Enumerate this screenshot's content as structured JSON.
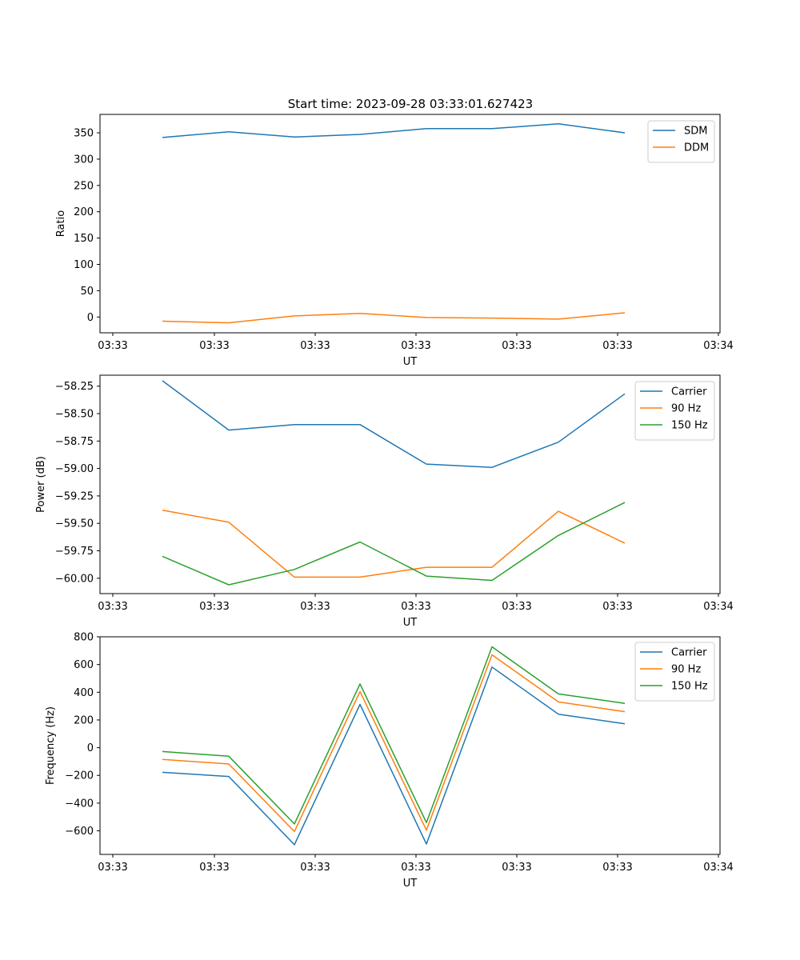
{
  "figure_title": "Start time: 2023-09-28 03:33:01.627423",
  "colors": {
    "c0": "#1f77b4",
    "c1": "#ff7f0e",
    "c2": "#2ca02c"
  },
  "chart_data": [
    {
      "type": "line",
      "title": "Start time: 2023-09-28 03:33:01.627423",
      "xlabel": "UT",
      "ylabel": "Ratio",
      "x_tick_labels": [
        "03:33",
        "03:33",
        "03:33",
        "03:33",
        "03:33",
        "03:33",
        "03:34"
      ],
      "y_ticks": [
        0,
        50,
        100,
        150,
        200,
        250,
        300,
        350
      ],
      "ylim": [
        -30,
        385
      ],
      "legend_position": "top-right",
      "series": [
        {
          "name": "SDM",
          "color": "#1f77b4",
          "values": [
            341,
            352,
            342,
            347,
            358,
            358,
            367,
            350
          ]
        },
        {
          "name": "DDM",
          "color": "#ff7f0e",
          "values": [
            -8,
            -11,
            2,
            7,
            -1,
            -2,
            -4,
            8
          ]
        }
      ]
    },
    {
      "type": "line",
      "xlabel": "UT",
      "ylabel": "Power (dB)",
      "x_tick_labels": [
        "03:33",
        "03:33",
        "03:33",
        "03:33",
        "03:33",
        "03:33",
        "03:34"
      ],
      "y_ticks": [
        -60.0,
        -59.75,
        -59.5,
        -59.25,
        -59.0,
        -58.75,
        -58.5,
        -58.25
      ],
      "y_tick_labels": [
        "−60.00",
        "−59.75",
        "−59.50",
        "−59.25",
        "−59.00",
        "−58.75",
        "−58.50",
        "−58.25"
      ],
      "ylim": [
        -60.14,
        -58.15
      ],
      "legend_position": "top-right",
      "series": [
        {
          "name": "Carrier",
          "color": "#1f77b4",
          "values": [
            -58.2,
            -58.65,
            -58.6,
            -58.6,
            -58.96,
            -58.99,
            -58.76,
            -58.32
          ]
        },
        {
          "name": "90 Hz",
          "color": "#ff7f0e",
          "values": [
            -59.38,
            -59.49,
            -59.99,
            -59.99,
            -59.9,
            -59.9,
            -59.39,
            -59.68
          ]
        },
        {
          "name": "150 Hz",
          "color": "#2ca02c",
          "values": [
            -59.8,
            -60.06,
            -59.92,
            -59.67,
            -59.98,
            -60.02,
            -59.61,
            -59.31
          ]
        }
      ]
    },
    {
      "type": "line",
      "xlabel": "UT",
      "ylabel": "Frequency (Hz)",
      "x_tick_labels": [
        "03:33",
        "03:33",
        "03:33",
        "03:33",
        "03:33",
        "03:33",
        "03:34"
      ],
      "y_ticks": [
        -600,
        -400,
        -200,
        0,
        200,
        400,
        600,
        800
      ],
      "y_tick_labels": [
        "−600",
        "−400",
        "−200",
        "0",
        "200",
        "400",
        "600",
        "800"
      ],
      "ylim": [
        -770,
        800
      ],
      "legend_position": "top-right",
      "series": [
        {
          "name": "Carrier",
          "color": "#1f77b4",
          "values": [
            -178,
            -208,
            -700,
            312,
            -695,
            582,
            242,
            172
          ]
        },
        {
          "name": "90 Hz",
          "color": "#ff7f0e",
          "values": [
            -85,
            -118,
            -605,
            405,
            -595,
            670,
            330,
            260
          ]
        },
        {
          "name": "150 Hz",
          "color": "#2ca02c",
          "values": [
            -28,
            -62,
            -550,
            460,
            -540,
            728,
            388,
            320
          ]
        }
      ]
    }
  ]
}
